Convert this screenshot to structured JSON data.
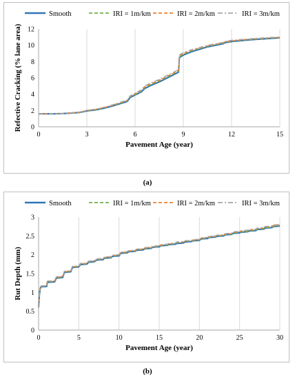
{
  "chart_data": [
    {
      "type": "line",
      "panel": "a",
      "xlabel": "Pavement Age (year)",
      "ylabel": "Refective Cracking (% lane area)",
      "xlim": [
        0,
        15
      ],
      "ylim": [
        0,
        12
      ],
      "xticks": [
        "0",
        "3",
        "6",
        "9",
        "12",
        "15"
      ],
      "yticks": [
        "0",
        "2",
        "4",
        "6",
        "8",
        "10",
        "12"
      ],
      "grid": "vertical",
      "legend_position": "top",
      "series": [
        {
          "name": "Smooth",
          "color": "#2e75b6",
          "dash": "solid",
          "x": [
            0,
            1,
            1.5,
            2,
            2.5,
            2.8,
            3,
            3.5,
            4,
            4.5,
            5,
            5.5,
            5.7,
            6,
            6.4,
            6.6,
            7,
            7.5,
            8,
            8.5,
            8.7,
            8.75,
            9,
            9.5,
            10,
            10.5,
            11,
            11.5,
            11.55,
            12,
            12.5,
            13,
            13.5,
            14,
            14.5,
            15
          ],
          "y": [
            1.6,
            1.6,
            1.62,
            1.68,
            1.75,
            1.85,
            1.95,
            2.05,
            2.25,
            2.5,
            2.8,
            3.1,
            3.6,
            3.9,
            4.3,
            4.7,
            5.1,
            5.5,
            6.0,
            6.5,
            6.7,
            8.5,
            8.8,
            9.2,
            9.5,
            9.8,
            10.0,
            10.2,
            10.3,
            10.45,
            10.55,
            10.65,
            10.72,
            10.78,
            10.85,
            10.92
          ]
        },
        {
          "name": "IRI = 1m/km",
          "color": "#70ad47",
          "dash": "dashed",
          "x": [
            0,
            1,
            1.5,
            2,
            2.5,
            2.8,
            3,
            3.5,
            4,
            4.5,
            5,
            5.5,
            5.7,
            6,
            6.4,
            6.6,
            7,
            7.5,
            8,
            8.5,
            8.7,
            8.75,
            9,
            9.5,
            10,
            10.5,
            11,
            11.5,
            11.55,
            12,
            12.5,
            13,
            13.5,
            14,
            14.5,
            15
          ],
          "y": [
            1.6,
            1.6,
            1.62,
            1.69,
            1.76,
            1.87,
            1.97,
            2.08,
            2.28,
            2.54,
            2.85,
            3.16,
            3.67,
            3.97,
            4.38,
            4.8,
            5.2,
            5.6,
            6.1,
            6.6,
            6.8,
            8.6,
            8.9,
            9.3,
            9.58,
            9.86,
            10.06,
            10.25,
            10.35,
            10.5,
            10.6,
            10.68,
            10.76,
            10.82,
            10.88,
            10.95
          ]
        },
        {
          "name": "IRI = 2m/km",
          "color": "#ed7d31",
          "dash": "dashed",
          "x": [
            0,
            1,
            1.5,
            2,
            2.5,
            2.8,
            3,
            3.5,
            4,
            4.5,
            5,
            5.5,
            5.7,
            6,
            6.4,
            6.6,
            7,
            7.5,
            8,
            8.5,
            8.7,
            8.75,
            9,
            9.5,
            10,
            10.5,
            11,
            11.5,
            11.55,
            12,
            12.5,
            13,
            13.5,
            14,
            14.5,
            15
          ],
          "y": [
            1.6,
            1.6,
            1.62,
            1.7,
            1.78,
            1.89,
            2.0,
            2.11,
            2.32,
            2.58,
            2.9,
            3.22,
            3.74,
            4.05,
            4.47,
            4.9,
            5.3,
            5.7,
            6.2,
            6.7,
            6.9,
            8.7,
            9.0,
            9.38,
            9.65,
            9.92,
            10.12,
            10.3,
            10.4,
            10.55,
            10.64,
            10.72,
            10.8,
            10.86,
            10.92,
            10.98
          ]
        },
        {
          "name": "IRI = 3m/km",
          "color": "#a5a5a5",
          "dash": "dash-dot",
          "x": [
            0,
            1,
            1.5,
            2,
            2.5,
            2.8,
            3,
            3.5,
            4,
            4.5,
            5,
            5.5,
            5.7,
            6,
            6.4,
            6.6,
            7,
            7.5,
            8,
            8.5,
            8.7,
            8.75,
            9,
            9.5,
            10,
            10.5,
            11,
            11.5,
            11.55,
            12,
            12.5,
            13,
            13.5,
            14,
            14.5,
            15
          ],
          "y": [
            1.6,
            1.6,
            1.63,
            1.71,
            1.8,
            1.92,
            2.03,
            2.15,
            2.36,
            2.63,
            2.95,
            3.28,
            3.8,
            4.12,
            4.55,
            5.0,
            5.4,
            5.8,
            6.3,
            6.8,
            7.0,
            8.8,
            9.1,
            9.45,
            9.72,
            9.98,
            10.18,
            10.35,
            10.45,
            10.6,
            10.68,
            10.76,
            10.84,
            10.9,
            10.96,
            11.02
          ]
        }
      ]
    },
    {
      "type": "line",
      "panel": "b",
      "xlabel": "Pavement Age (year)",
      "ylabel": "Rut Depth (mm)",
      "xlim": [
        0,
        30
      ],
      "ylim": [
        0,
        3
      ],
      "xticks": [
        "0",
        "5",
        "10",
        "15",
        "20",
        "25",
        "30"
      ],
      "yticks": [
        "0",
        "0.5",
        "1",
        "1.5",
        "2",
        "2.5",
        "3"
      ],
      "grid": "vertical",
      "legend_position": "top",
      "series": [
        {
          "name": "Smooth",
          "color": "#2e75b6",
          "dash": "solid",
          "x": [
            0,
            0.1,
            0.2,
            0.3,
            1,
            1.1,
            2,
            2.2,
            3,
            3.2,
            4,
            4.2,
            5,
            5.2,
            6,
            6.2,
            7,
            7.2,
            8,
            8.2,
            9,
            9.2,
            10,
            10.2,
            11,
            11.2,
            12,
            12.2,
            13,
            13.2,
            14,
            14.2,
            15,
            15.2,
            16,
            16.2,
            17,
            17.2,
            18,
            18.2,
            19,
            19.2,
            20,
            20.2,
            21,
            21.2,
            22,
            22.2,
            23,
            23.2,
            24,
            24.2,
            25,
            25.2,
            26,
            26.2,
            27,
            27.2,
            28,
            28.2,
            29,
            29.2,
            30
          ],
          "y": [
            0.6,
            0.95,
            1.1,
            1.15,
            1.16,
            1.27,
            1.28,
            1.38,
            1.4,
            1.53,
            1.55,
            1.66,
            1.68,
            1.74,
            1.75,
            1.8,
            1.82,
            1.86,
            1.87,
            1.91,
            1.92,
            1.96,
            1.97,
            2.04,
            2.05,
            2.08,
            2.09,
            2.12,
            2.13,
            2.16,
            2.17,
            2.2,
            2.21,
            2.24,
            2.25,
            2.27,
            2.28,
            2.3,
            2.31,
            2.34,
            2.35,
            2.37,
            2.38,
            2.42,
            2.43,
            2.46,
            2.47,
            2.49,
            2.5,
            2.53,
            2.54,
            2.57,
            2.58,
            2.6,
            2.61,
            2.63,
            2.64,
            2.67,
            2.68,
            2.71,
            2.72,
            2.75,
            2.76
          ]
        },
        {
          "name": "IRI = 1m/km",
          "color": "#70ad47",
          "dash": "dashed",
          "x": [
            0,
            0.1,
            0.2,
            0.3,
            1,
            1.1,
            2,
            2.2,
            3,
            3.2,
            4,
            4.2,
            5,
            5.2,
            6,
            6.2,
            7,
            7.2,
            8,
            8.2,
            9,
            9.2,
            10,
            10.2,
            11,
            11.2,
            12,
            12.2,
            13,
            13.2,
            14,
            14.2,
            15,
            15.2,
            16,
            16.2,
            17,
            17.2,
            18,
            18.2,
            19,
            19.2,
            20,
            20.2,
            21,
            21.2,
            22,
            22.2,
            23,
            23.2,
            24,
            24.2,
            25,
            25.2,
            26,
            26.2,
            27,
            27.2,
            28,
            28.2,
            29,
            29.2,
            30
          ],
          "y": [
            0.6,
            0.96,
            1.11,
            1.16,
            1.17,
            1.28,
            1.29,
            1.39,
            1.41,
            1.54,
            1.56,
            1.67,
            1.69,
            1.75,
            1.76,
            1.81,
            1.83,
            1.87,
            1.88,
            1.92,
            1.93,
            1.97,
            1.98,
            2.05,
            2.06,
            2.09,
            2.1,
            2.13,
            2.14,
            2.17,
            2.18,
            2.21,
            2.22,
            2.25,
            2.26,
            2.28,
            2.29,
            2.32,
            2.33,
            2.35,
            2.36,
            2.38,
            2.39,
            2.43,
            2.44,
            2.47,
            2.48,
            2.5,
            2.51,
            2.54,
            2.55,
            2.58,
            2.59,
            2.61,
            2.62,
            2.64,
            2.65,
            2.68,
            2.69,
            2.72,
            2.73,
            2.76,
            2.77
          ]
        },
        {
          "name": "IRI = 2m/km",
          "color": "#ed7d31",
          "dash": "dashed",
          "x": [
            0,
            0.1,
            0.2,
            0.3,
            1,
            1.1,
            2,
            2.2,
            3,
            3.2,
            4,
            4.2,
            5,
            5.2,
            6,
            6.2,
            7,
            7.2,
            8,
            8.2,
            9,
            9.2,
            10,
            10.2,
            11,
            11.2,
            12,
            12.2,
            13,
            13.2,
            14,
            14.2,
            15,
            15.2,
            16,
            16.2,
            17,
            17.2,
            18,
            18.2,
            19,
            19.2,
            20,
            20.2,
            21,
            21.2,
            22,
            22.2,
            23,
            23.2,
            24,
            24.2,
            25,
            25.2,
            26,
            26.2,
            27,
            27.2,
            28,
            28.2,
            29,
            29.2,
            30
          ],
          "y": [
            0.6,
            0.96,
            1.12,
            1.17,
            1.18,
            1.29,
            1.3,
            1.4,
            1.42,
            1.55,
            1.57,
            1.68,
            1.7,
            1.76,
            1.77,
            1.82,
            1.84,
            1.88,
            1.89,
            1.93,
            1.94,
            1.98,
            1.99,
            2.06,
            2.07,
            2.1,
            2.11,
            2.14,
            2.15,
            2.18,
            2.19,
            2.22,
            2.23,
            2.26,
            2.27,
            2.29,
            2.3,
            2.33,
            2.34,
            2.36,
            2.37,
            2.39,
            2.4,
            2.44,
            2.45,
            2.48,
            2.49,
            2.51,
            2.52,
            2.55,
            2.56,
            2.6,
            2.61,
            2.63,
            2.64,
            2.66,
            2.67,
            2.7,
            2.71,
            2.74,
            2.75,
            2.78,
            2.79
          ]
        },
        {
          "name": "IRI = 3m/km",
          "color": "#a5a5a5",
          "dash": "dash-dot",
          "x": [
            0,
            0.1,
            0.2,
            0.3,
            1,
            1.1,
            2,
            2.2,
            3,
            3.2,
            4,
            4.2,
            5,
            5.2,
            6,
            6.2,
            7,
            7.2,
            8,
            8.2,
            9,
            9.2,
            10,
            10.2,
            11,
            11.2,
            12,
            12.2,
            13,
            13.2,
            14,
            14.2,
            15,
            15.2,
            16,
            16.2,
            17,
            17.2,
            18,
            18.2,
            19,
            19.2,
            20,
            20.2,
            21,
            21.2,
            22,
            22.2,
            23,
            23.2,
            24,
            24.2,
            25,
            25.2,
            26,
            26.2,
            27,
            27.2,
            28,
            28.2,
            29,
            29.2,
            30
          ],
          "y": [
            0.6,
            0.97,
            1.12,
            1.17,
            1.18,
            1.3,
            1.31,
            1.41,
            1.43,
            1.56,
            1.58,
            1.69,
            1.71,
            1.77,
            1.78,
            1.83,
            1.85,
            1.89,
            1.9,
            1.94,
            1.95,
            1.99,
            2.0,
            2.07,
            2.08,
            2.11,
            2.12,
            2.15,
            2.16,
            2.19,
            2.2,
            2.23,
            2.24,
            2.27,
            2.28,
            2.3,
            2.31,
            2.34,
            2.35,
            2.37,
            2.38,
            2.4,
            2.41,
            2.45,
            2.46,
            2.49,
            2.5,
            2.52,
            2.53,
            2.56,
            2.57,
            2.61,
            2.62,
            2.64,
            2.65,
            2.67,
            2.68,
            2.71,
            2.72,
            2.75,
            2.76,
            2.79,
            2.8
          ]
        }
      ]
    }
  ],
  "captions": {
    "a": "(a)",
    "b": "(b)"
  }
}
